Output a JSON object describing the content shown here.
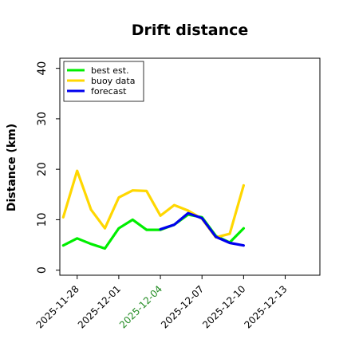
{
  "chart_data": {
    "type": "line",
    "title": "Drift distance",
    "xlabel": "",
    "ylabel": "Distance (km)",
    "ylim": [
      -1,
      42
    ],
    "yticks": [
      0,
      10,
      20,
      30,
      40
    ],
    "xlim": [
      "2025-11-26T18:00",
      "2025-12-15T12:00"
    ],
    "xticks": [
      {
        "date": "2025-11-28",
        "label": "2025-11-28",
        "color": "#000000"
      },
      {
        "date": "2025-12-01",
        "label": "2025-12-01",
        "color": "#000000"
      },
      {
        "date": "2025-12-04",
        "label": "2025-12-04",
        "color": "#228B22"
      },
      {
        "date": "2025-12-07",
        "label": "2025-12-07",
        "color": "#000000"
      },
      {
        "date": "2025-12-10",
        "label": "2025-12-10",
        "color": "#000000"
      },
      {
        "date": "2025-12-13",
        "label": "2025-12-13",
        "color": "#000000"
      }
    ],
    "legend_position": "top-left",
    "series": [
      {
        "name": "best est.",
        "color": "#00ee00",
        "x": [
          "2025-11-27T00:00",
          "2025-11-28T00:00",
          "2025-11-29T00:00",
          "2025-11-30T00:00",
          "2025-12-01T00:00",
          "2025-12-02T00:00",
          "2025-12-03T00:00",
          "2025-12-04T00:00",
          "2025-12-05T00:00",
          "2025-12-06T00:00",
          "2025-12-07T00:00",
          "2025-12-08T00:00",
          "2025-12-09T00:00",
          "2025-12-10T00:00"
        ],
        "values": [
          4.9,
          6.3,
          5.2,
          4.3,
          8.3,
          10.0,
          8.0,
          8.0,
          9.0,
          11.0,
          10.5,
          6.8,
          5.5,
          8.3
        ]
      },
      {
        "name": "buoy data",
        "color": "#ffd700",
        "x": [
          "2025-11-27T00:00",
          "2025-11-28T00:00",
          "2025-11-29T00:00",
          "2025-11-30T00:00",
          "2025-12-01T00:00",
          "2025-12-02T00:00",
          "2025-12-03T00:00",
          "2025-12-04T00:00",
          "2025-12-05T00:00",
          "2025-12-06T00:00",
          "2025-12-07T00:00",
          "2025-12-08T00:00",
          "2025-12-09T00:00",
          "2025-12-10T00:00"
        ],
        "values": [
          10.5,
          19.7,
          12.0,
          8.3,
          14.4,
          15.8,
          15.7,
          10.8,
          12.9,
          11.8,
          10.2,
          6.5,
          7.2,
          16.8
        ]
      },
      {
        "name": "forecast",
        "color": "#0000ee",
        "x": [
          "2025-12-04T00:00",
          "2025-12-05T00:00",
          "2025-12-06T00:00",
          "2025-12-07T00:00",
          "2025-12-08T00:00",
          "2025-12-09T00:00",
          "2025-12-10T00:00"
        ],
        "values": [
          8.1,
          9.0,
          11.3,
          10.3,
          6.6,
          5.4,
          4.9
        ]
      }
    ]
  }
}
